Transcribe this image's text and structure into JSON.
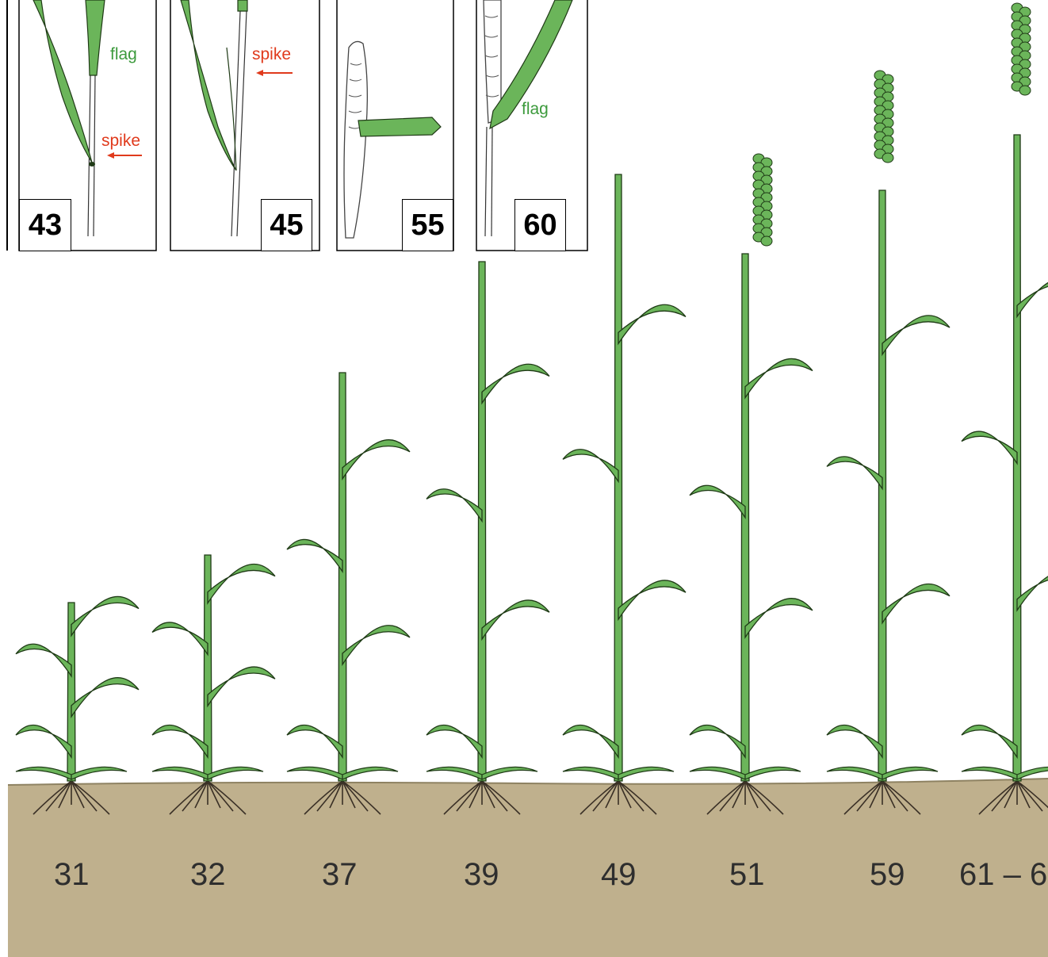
{
  "colors": {
    "leaf": "#6bb55a",
    "leaf_outline": "#1f3a16",
    "soil": "#bfb08d",
    "root": "#3a3026",
    "flag_label": "#3c9a3c",
    "spike_label": "#e03a1c"
  },
  "insets": [
    {
      "id": "43",
      "number": "43",
      "labels": {
        "flag": "flag",
        "spike": "spike"
      }
    },
    {
      "id": "45",
      "number": "45",
      "labels": {
        "spike": "spike"
      }
    },
    {
      "id": "55",
      "number": "55"
    },
    {
      "id": "60",
      "number": "60",
      "labels": {
        "flag": "flag"
      }
    }
  ],
  "stages": [
    "31",
    "32",
    "37",
    "39",
    "49",
    "51",
    "59",
    "61 – 6"
  ]
}
